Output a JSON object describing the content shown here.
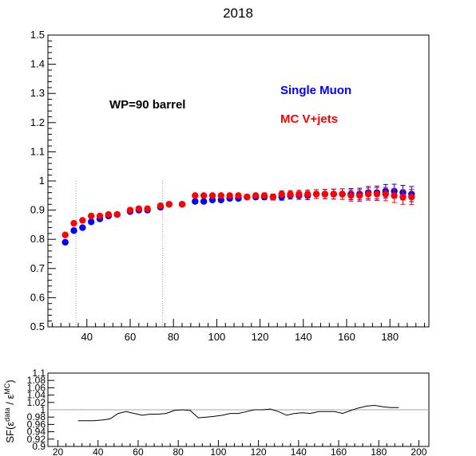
{
  "chart_data": [
    {
      "type": "scatter",
      "title": "2018",
      "xlabel": "",
      "ylabel": "",
      "xlim": [
        22,
        198
      ],
      "ylim": [
        0.5,
        1.5
      ],
      "x_ticks": [
        "40",
        "60",
        "80",
        "100",
        "120",
        "140",
        "160",
        "180"
      ],
      "y_ticks": [
        "0.5",
        "0.6",
        "0.7",
        "0.8",
        "0.9",
        "1",
        "1.1",
        "1.2",
        "1.3",
        "1.4",
        "1.5"
      ],
      "grid": false,
      "reference_lines_x": [
        35,
        75
      ],
      "annotations": [
        {
          "id": "wp",
          "text": "WP=90 barrel",
          "color": "#000000"
        },
        {
          "id": "data",
          "text": "Single Muon",
          "color": "#0000ff"
        },
        {
          "id": "mc",
          "text": "MC V+jets",
          "color": "#ff0000"
        }
      ],
      "series": [
        {
          "name": "Single Muon",
          "color": "#0000ff",
          "x": [
            30,
            34,
            38,
            42,
            46,
            50,
            54,
            60,
            64,
            68,
            74,
            78,
            84,
            90,
            94,
            98,
            102,
            106,
            110,
            114,
            118,
            122,
            126,
            130,
            134,
            138,
            142,
            146,
            150,
            154,
            158,
            162,
            166,
            170,
            174,
            178,
            182,
            186,
            190
          ],
          "y": [
            0.79,
            0.83,
            0.84,
            0.86,
            0.87,
            0.88,
            0.885,
            0.895,
            0.9,
            0.9,
            0.91,
            0.92,
            0.92,
            0.93,
            0.93,
            0.935,
            0.935,
            0.94,
            0.94,
            0.945,
            0.945,
            0.945,
            0.945,
            0.945,
            0.95,
            0.95,
            0.95,
            0.955,
            0.955,
            0.955,
            0.955,
            0.955,
            0.955,
            0.96,
            0.96,
            0.965,
            0.965,
            0.96,
            0.955
          ],
          "yerr": [
            0.006,
            0.005,
            0.005,
            0.005,
            0.005,
            0.005,
            0.005,
            0.005,
            0.005,
            0.005,
            0.005,
            0.005,
            0.005,
            0.006,
            0.006,
            0.006,
            0.006,
            0.007,
            0.007,
            0.008,
            0.008,
            0.009,
            0.01,
            0.011,
            0.012,
            0.013,
            0.014,
            0.015,
            0.016,
            0.017,
            0.018,
            0.019,
            0.02,
            0.021,
            0.022,
            0.023,
            0.024,
            0.025,
            0.026
          ]
        },
        {
          "name": "MC V+jets",
          "color": "#ff0000",
          "x": [
            30,
            34,
            38,
            42,
            46,
            50,
            54,
            60,
            64,
            68,
            74,
            78,
            84,
            90,
            94,
            98,
            102,
            106,
            110,
            114,
            118,
            122,
            126,
            130,
            134,
            138,
            142,
            146,
            150,
            154,
            158,
            162,
            166,
            170,
            174,
            178,
            182,
            186,
            190
          ],
          "y": [
            0.815,
            0.855,
            0.865,
            0.88,
            0.88,
            0.885,
            0.885,
            0.9,
            0.905,
            0.905,
            0.915,
            0.92,
            0.92,
            0.95,
            0.95,
            0.95,
            0.95,
            0.95,
            0.95,
            0.945,
            0.95,
            0.95,
            0.945,
            0.955,
            0.955,
            0.955,
            0.955,
            0.955,
            0.955,
            0.955,
            0.955,
            0.95,
            0.95,
            0.955,
            0.955,
            0.955,
            0.95,
            0.945,
            0.945
          ],
          "yerr": [
            0.006,
            0.005,
            0.005,
            0.005,
            0.005,
            0.005,
            0.005,
            0.005,
            0.005,
            0.005,
            0.005,
            0.005,
            0.005,
            0.006,
            0.006,
            0.006,
            0.006,
            0.007,
            0.007,
            0.008,
            0.008,
            0.009,
            0.01,
            0.011,
            0.012,
            0.013,
            0.014,
            0.015,
            0.016,
            0.017,
            0.018,
            0.019,
            0.02,
            0.021,
            0.022,
            0.023,
            0.024,
            0.025,
            0.026
          ]
        }
      ]
    },
    {
      "type": "line",
      "title": "",
      "xlabel": "",
      "ylabel": "SF(ε^data / ε^MC)",
      "ylabel_parts": {
        "prefix": "SF(ε",
        "sup1": "data",
        "slash": " / ε",
        "sup2": "MC",
        "suffix": ")"
      },
      "xlim": [
        15,
        205
      ],
      "ylim": [
        0.9,
        1.1
      ],
      "x_ticks": [
        "20",
        "40",
        "60",
        "80",
        "100",
        "120",
        "140",
        "160",
        "180",
        "200"
      ],
      "y_ticks": [
        "0.9",
        "0.92",
        "0.94",
        "0.96",
        "0.98",
        "1",
        "1.02",
        "1.04",
        "1.06",
        "1.08",
        "1.1"
      ],
      "reference_y": 1,
      "grid": false,
      "series": [
        {
          "color": "#000000",
          "x": [
            30,
            34,
            38,
            42,
            46,
            50,
            54,
            58,
            62,
            66,
            70,
            74,
            78,
            82,
            86,
            90,
            94,
            98,
            102,
            106,
            110,
            114,
            118,
            122,
            126,
            130,
            134,
            138,
            142,
            146,
            150,
            154,
            158,
            162,
            166,
            170,
            174,
            178,
            182,
            186,
            190
          ],
          "y": [
            0.97,
            0.97,
            0.97,
            0.972,
            0.975,
            0.99,
            0.995,
            0.99,
            0.985,
            0.988,
            0.988,
            0.99,
            0.998,
            1.0,
            0.998,
            0.978,
            0.98,
            0.982,
            0.985,
            0.99,
            0.99,
            0.995,
            1.0,
            1.0,
            1.002,
            0.995,
            0.985,
            0.99,
            0.992,
            0.99,
            0.995,
            0.995,
            0.995,
            0.99,
            0.998,
            1.005,
            1.01,
            1.012,
            1.008,
            1.006,
            1.006
          ]
        }
      ]
    }
  ]
}
